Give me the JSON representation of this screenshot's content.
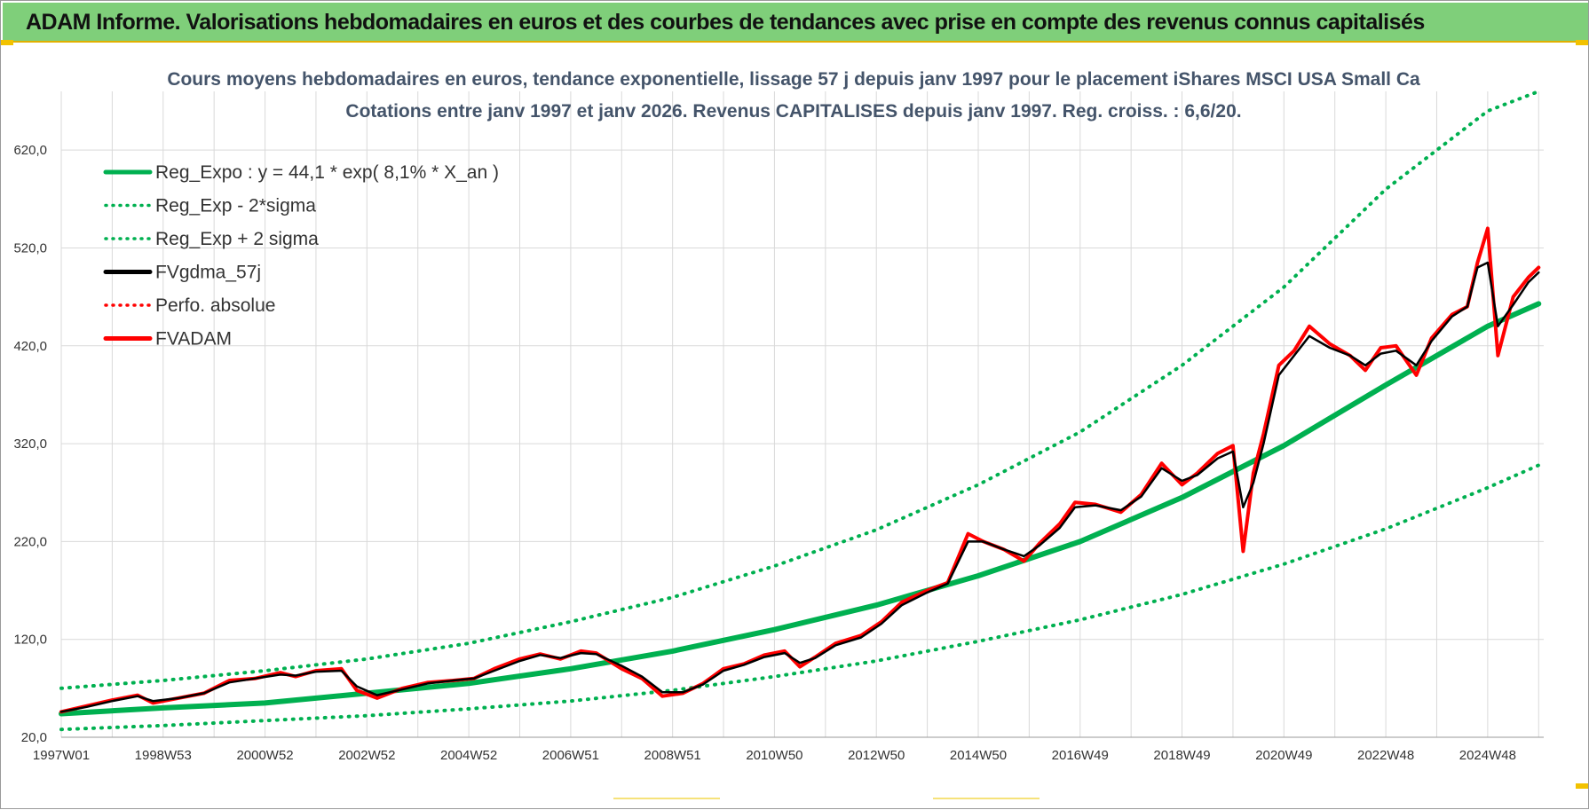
{
  "banner": {
    "title": "ADAM Informe. Valorisations hebdomadaires en euros et des courbes de tendances avec prise en compte des revenus connus capitalisés"
  },
  "colors": {
    "banner_bg": "#7fcf7a",
    "regression": "#00b050",
    "smoothed": "#000000",
    "fvadam": "#ff0000",
    "perfo": "#ff0000",
    "grid": "#d9d9d9"
  },
  "chart_data": {
    "type": "line",
    "title_line1": "Cours moyens hebdomadaires en euros, tendance exponentielle, lissage 57 j depuis janv 1997 pour le placement iShares MSCI USA Small Ca",
    "title_line2": "Cotations entre janv 1997 et janv 2026. Revenus CAPITALISES depuis janv 1997. Reg. croiss. : 6,6/20.",
    "y_ticks": [
      "20,0",
      "120,0",
      "220,0",
      "320,0",
      "420,0",
      "520,0",
      "620,0"
    ],
    "x_tick_labels": [
      "1997W01",
      "1998W53",
      "2000W52",
      "2002W52",
      "2004W52",
      "2006W51",
      "2008W51",
      "2010W50",
      "2012W50",
      "2014W50",
      "2016W49",
      "2018W49",
      "2020W49",
      "2022W48",
      "2024W48"
    ],
    "x_tick_years": [
      1997,
      1999,
      2001,
      2003,
      2005,
      2007,
      2009,
      2011,
      2013,
      2015,
      2017,
      2019,
      2021,
      2023,
      2025
    ],
    "xlim": [
      1997.0,
      2026.1
    ],
    "ylim": [
      20,
      680
    ],
    "grid": true,
    "legend_position": "top-left",
    "legend": [
      {
        "label": "Reg_Expo : y = 44,1 * exp( 8,1% *  X_an )",
        "color": "#00b050",
        "style": "solid"
      },
      {
        "label": "Reg_Exp - 2*sigma",
        "color": "#00b050",
        "style": "dotted"
      },
      {
        "label": "Reg_Exp + 2 sigma",
        "color": "#00b050",
        "style": "dotted"
      },
      {
        "label": "FVgdma_57j",
        "color": "#000000",
        "style": "solid"
      },
      {
        "label": "Perfo. absolue",
        "color": "#ff0000",
        "style": "dotted"
      },
      {
        "label": "FVADAM",
        "color": "#ff0000",
        "style": "solid"
      }
    ],
    "series": [
      {
        "name": "Reg_Expo : y = 44,1 * exp( 8,1% *  X_an )",
        "x": [
          1997,
          1999,
          2001,
          2003,
          2005,
          2007,
          2009,
          2011,
          2013,
          2015,
          2017,
          2019,
          2021,
          2023,
          2025,
          2026
        ],
        "y": [
          44,
          50,
          55,
          65,
          75,
          90,
          108,
          130,
          155,
          185,
          220,
          265,
          318,
          380,
          440,
          463
        ]
      },
      {
        "name": "Reg_Exp - 2*sigma",
        "x": [
          1997,
          1999,
          2001,
          2003,
          2005,
          2007,
          2009,
          2011,
          2013,
          2015,
          2017,
          2019,
          2021,
          2023,
          2025,
          2026
        ],
        "y": [
          28,
          32,
          37,
          42,
          49,
          57,
          68,
          82,
          98,
          118,
          140,
          166,
          197,
          233,
          275,
          298
        ]
      },
      {
        "name": "Reg_Exp + 2 sigma",
        "x": [
          1997,
          1999,
          2001,
          2003,
          2005,
          2007,
          2009,
          2011,
          2013,
          2015,
          2017,
          2019,
          2021,
          2023,
          2025,
          2026
        ],
        "y": [
          70,
          78,
          88,
          100,
          116,
          138,
          163,
          195,
          232,
          278,
          332,
          400,
          480,
          580,
          660,
          680
        ]
      },
      {
        "name": "FVADAM",
        "x": [
          1997.0,
          1997.5,
          1998.0,
          1998.5,
          1998.8,
          1999.3,
          1999.8,
          2000.3,
          2000.8,
          2001.3,
          2001.6,
          2002.0,
          2002.5,
          2002.8,
          2003.2,
          2003.7,
          2004.2,
          2004.7,
          2005.1,
          2005.5,
          2006.0,
          2006.4,
          2006.8,
          2007.2,
          2007.5,
          2008.0,
          2008.4,
          2008.8,
          2009.2,
          2009.6,
          2010.0,
          2010.4,
          2010.8,
          2011.2,
          2011.5,
          2011.8,
          2012.2,
          2012.7,
          2013.1,
          2013.5,
          2014.0,
          2014.4,
          2014.8,
          2015.1,
          2015.5,
          2015.9,
          2016.2,
          2016.6,
          2016.9,
          2017.3,
          2017.8,
          2018.2,
          2018.6,
          2019.0,
          2019.3,
          2019.7,
          2020.0,
          2020.2,
          2020.4,
          2020.6,
          2020.9,
          2021.2,
          2021.5,
          2021.9,
          2022.3,
          2022.6,
          2022.9,
          2023.2,
          2023.6,
          2023.9,
          2024.3,
          2024.6,
          2024.8,
          2025.0,
          2025.2,
          2025.5,
          2025.8,
          2026.0
        ],
        "y": [
          46,
          52,
          58,
          63,
          55,
          60,
          65,
          78,
          80,
          86,
          82,
          88,
          90,
          68,
          60,
          70,
          76,
          78,
          80,
          90,
          100,
          105,
          100,
          108,
          106,
          90,
          80,
          62,
          65,
          75,
          90,
          95,
          104,
          108,
          92,
          102,
          116,
          124,
          138,
          158,
          170,
          178,
          228,
          220,
          212,
          200,
          218,
          238,
          260,
          258,
          250,
          268,
          300,
          278,
          290,
          310,
          318,
          210,
          290,
          330,
          400,
          415,
          440,
          422,
          410,
          395,
          418,
          420,
          390,
          428,
          452,
          460,
          505,
          540,
          410,
          470,
          490,
          500
        ]
      },
      {
        "name": "FVgdma_57j",
        "x": [
          1997.0,
          1997.5,
          1998.0,
          1998.5,
          1998.8,
          1999.3,
          1999.8,
          2000.3,
          2000.8,
          2001.3,
          2001.6,
          2002.0,
          2002.5,
          2002.8,
          2003.2,
          2003.7,
          2004.2,
          2004.7,
          2005.1,
          2005.5,
          2006.0,
          2006.4,
          2006.8,
          2007.2,
          2007.5,
          2008.0,
          2008.4,
          2008.8,
          2009.2,
          2009.6,
          2010.0,
          2010.4,
          2010.8,
          2011.2,
          2011.5,
          2011.8,
          2012.2,
          2012.7,
          2013.1,
          2013.5,
          2014.0,
          2014.4,
          2014.8,
          2015.1,
          2015.5,
          2015.9,
          2016.2,
          2016.6,
          2016.9,
          2017.3,
          2017.8,
          2018.2,
          2018.6,
          2019.0,
          2019.3,
          2019.7,
          2020.0,
          2020.2,
          2020.4,
          2020.6,
          2020.9,
          2021.2,
          2021.5,
          2021.9,
          2022.3,
          2022.6,
          2022.9,
          2023.2,
          2023.6,
          2023.9,
          2024.3,
          2024.6,
          2024.8,
          2025.0,
          2025.2,
          2025.5,
          2025.8,
          2026.0
        ],
        "y": [
          46,
          51,
          57,
          62,
          57,
          60,
          65,
          76,
          80,
          84,
          83,
          87,
          88,
          72,
          63,
          69,
          75,
          78,
          80,
          88,
          98,
          104,
          101,
          106,
          105,
          93,
          82,
          66,
          66,
          74,
          88,
          94,
          102,
          106,
          96,
          101,
          114,
          122,
          136,
          155,
          168,
          177,
          220,
          220,
          212,
          205,
          216,
          234,
          255,
          257,
          252,
          266,
          295,
          282,
          288,
          305,
          312,
          255,
          280,
          320,
          390,
          410,
          430,
          418,
          410,
          400,
          412,
          415,
          400,
          425,
          450,
          460,
          500,
          505,
          440,
          462,
          485,
          495
        ]
      }
    ]
  }
}
